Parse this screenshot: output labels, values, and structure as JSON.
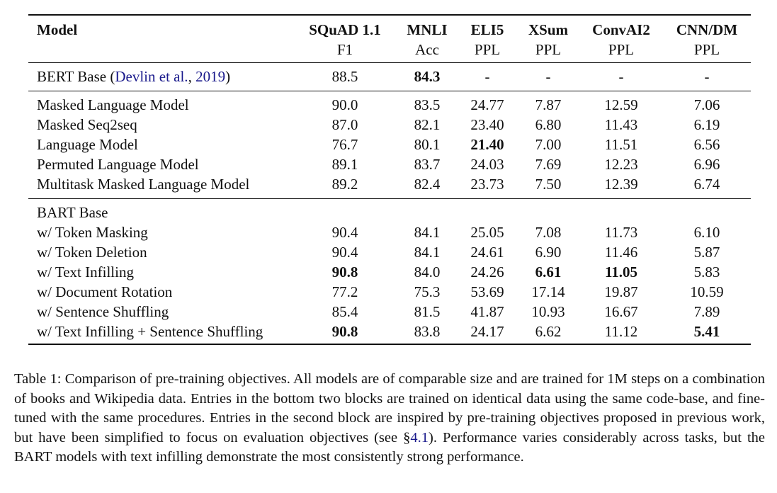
{
  "table": {
    "columns": [
      {
        "name": "Model",
        "sub": ""
      },
      {
        "name": "SQuAD 1.1",
        "sub": "F1"
      },
      {
        "name": "MNLI",
        "sub": "Acc"
      },
      {
        "name": "ELI5",
        "sub": "PPL"
      },
      {
        "name": "XSum",
        "sub": "PPL"
      },
      {
        "name": "ConvAI2",
        "sub": "PPL"
      },
      {
        "name": "CNN/DM",
        "sub": "PPL"
      }
    ],
    "bert_row": {
      "label_prefix": "BERT Base (",
      "citation_author": "Devlin et al.",
      "citation_sep": ", ",
      "citation_year": "2019",
      "label_suffix": ")",
      "values": [
        "88.5",
        "84.3",
        "-",
        "-",
        "-",
        "-"
      ],
      "bold": [
        false,
        true,
        false,
        false,
        false,
        false
      ]
    },
    "block2": [
      {
        "label": "Masked Language Model",
        "values": [
          "90.0",
          "83.5",
          "24.77",
          "7.87",
          "12.59",
          "7.06"
        ],
        "bold": [
          false,
          false,
          false,
          false,
          false,
          false
        ]
      },
      {
        "label": "Masked Seq2seq",
        "values": [
          "87.0",
          "82.1",
          "23.40",
          "6.80",
          "11.43",
          "6.19"
        ],
        "bold": [
          false,
          false,
          false,
          false,
          false,
          false
        ]
      },
      {
        "label": "Language Model",
        "values": [
          "76.7",
          "80.1",
          "21.40",
          "7.00",
          "11.51",
          "6.56"
        ],
        "bold": [
          false,
          false,
          true,
          false,
          false,
          false
        ]
      },
      {
        "label": "Permuted Language Model",
        "values": [
          "89.1",
          "83.7",
          "24.03",
          "7.69",
          "12.23",
          "6.96"
        ],
        "bold": [
          false,
          false,
          false,
          false,
          false,
          false
        ]
      },
      {
        "label": "Multitask Masked Language Model",
        "values": [
          "89.2",
          "82.4",
          "23.73",
          "7.50",
          "12.39",
          "6.74"
        ],
        "bold": [
          false,
          false,
          false,
          false,
          false,
          false
        ]
      }
    ],
    "block3_header": "BART Base",
    "block3": [
      {
        "label": "w/ Token Masking",
        "values": [
          "90.4",
          "84.1",
          "25.05",
          "7.08",
          "11.73",
          "6.10"
        ],
        "bold": [
          false,
          false,
          false,
          false,
          false,
          false
        ]
      },
      {
        "label": "w/ Token Deletion",
        "values": [
          "90.4",
          "84.1",
          "24.61",
          "6.90",
          "11.46",
          "5.87"
        ],
        "bold": [
          false,
          false,
          false,
          false,
          false,
          false
        ]
      },
      {
        "label": "w/ Text Infilling",
        "values": [
          "90.8",
          "84.0",
          "24.26",
          "6.61",
          "11.05",
          "5.83"
        ],
        "bold": [
          true,
          false,
          false,
          true,
          true,
          false
        ]
      },
      {
        "label": "w/ Document Rotation",
        "values": [
          "77.2",
          "75.3",
          "53.69",
          "17.14",
          "19.87",
          "10.59"
        ],
        "bold": [
          false,
          false,
          false,
          false,
          false,
          false
        ]
      },
      {
        "label": "w/ Sentence Shuffling",
        "values": [
          "85.4",
          "81.5",
          "41.87",
          "10.93",
          "16.67",
          "7.89"
        ],
        "bold": [
          false,
          false,
          false,
          false,
          false,
          false
        ]
      },
      {
        "label": "w/ Text Infilling + Sentence Shuffling",
        "values": [
          "90.8",
          "83.8",
          "24.17",
          "6.62",
          "11.12",
          "5.41"
        ],
        "bold": [
          true,
          false,
          false,
          false,
          false,
          true
        ]
      }
    ]
  },
  "caption": {
    "part1": "Table 1:  Comparison of pre-training objectives. All models are of comparable size and are trained for 1M steps on a combination of books and Wikipedia data.  Entries in the bottom two blocks are trained on identical data using the same code-base, and fine-tuned with the same procedures. Entries in the second block are inspired by pre-training objectives proposed in previous work, but have been simplified to focus on evaluation objectives (see §",
    "ref": "4.1",
    "part2": "). Performance varies considerably across tasks, but the BART models with text infilling demonstrate the most consistently strong performance."
  }
}
